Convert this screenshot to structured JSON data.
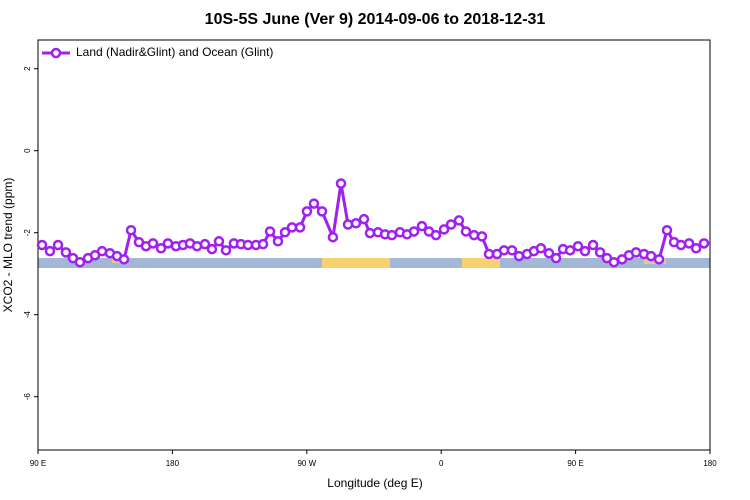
{
  "chart_data": {
    "type": "line",
    "title": "10S-5S June (Ver 9)   2014-09-06 to 2018-12-31",
    "x_label": "Longitude (deg E)",
    "y_label": "XCO2 - MLO trend (ppm)",
    "xlim": [
      90,
      540
    ],
    "xticks": [
      {
        "value": 90,
        "label": "90 E"
      },
      {
        "value": 180,
        "label": "180"
      },
      {
        "value": 270,
        "label": "90 W"
      },
      {
        "value": 360,
        "label": "0"
      },
      {
        "value": 450,
        "label": "90 E"
      },
      {
        "value": 540,
        "label": "180"
      }
    ],
    "ylim": [
      -7.3,
      2.7
    ],
    "yticks": [
      -6,
      -4,
      -2,
      0,
      2
    ],
    "legend": "top-left",
    "x": [
      92.7,
      98.0,
      103.4,
      108.7,
      113.4,
      118.1,
      123.5,
      128.2,
      132.9,
      138.2,
      142.9,
      147.6,
      152.3,
      157.6,
      162.3,
      167.0,
      172.4,
      177.0,
      182.4,
      187.1,
      191.8,
      196.5,
      201.8,
      206.5,
      211.2,
      215.9,
      221.2,
      225.9,
      230.6,
      236.0,
      240.7,
      245.4,
      250.7,
      255.4,
      260.1,
      265.5,
      270.1,
      274.8,
      280.2,
      287.5,
      292.9,
      297.6,
      302.9,
      308.3,
      312.3,
      317.7,
      322.4,
      327.0,
      332.4,
      337.1,
      341.8,
      347.1,
      351.8,
      356.5,
      361.9,
      366.6,
      371.9,
      376.6,
      382.0,
      387.3,
      392.0,
      397.4,
      402.1,
      407.4,
      412.1,
      417.5,
      422.1,
      426.8,
      432.2,
      436.9,
      441.6,
      446.3,
      451.6,
      456.3,
      461.7,
      466.4,
      471.0,
      475.7,
      481.1,
      485.8,
      490.5,
      495.8,
      500.5,
      505.9,
      511.2,
      515.9,
      520.6,
      526.0,
      530.7,
      536.0
    ],
    "series": [
      {
        "name": "Land (Nadir&Glint) and Ocean (Glint)",
        "color": "#a020f0",
        "values": [
          -2.3,
          -2.45,
          -2.3,
          -2.48,
          -2.62,
          -2.72,
          -2.62,
          -2.55,
          -2.45,
          -2.5,
          -2.57,
          -2.65,
          -1.94,
          -2.23,
          -2.33,
          -2.26,
          -2.38,
          -2.26,
          -2.33,
          -2.3,
          -2.26,
          -2.33,
          -2.28,
          -2.4,
          -2.21,
          -2.43,
          -2.26,
          -2.28,
          -2.3,
          -2.3,
          -2.28,
          -1.97,
          -2.21,
          -1.99,
          -1.87,
          -1.87,
          -1.48,
          -1.29,
          -1.48,
          -2.11,
          -0.8,
          -1.8,
          -1.77,
          -1.67,
          -2.01,
          -1.99,
          -2.04,
          -2.06,
          -1.99,
          -2.04,
          -1.97,
          -1.84,
          -1.97,
          -2.06,
          -1.92,
          -1.8,
          -1.7,
          -1.97,
          -2.06,
          -2.09,
          -2.52,
          -2.52,
          -2.43,
          -2.43,
          -2.57,
          -2.52,
          -2.45,
          -2.38,
          -2.5,
          -2.62,
          -2.4,
          -2.43,
          -2.33,
          -2.45,
          -2.3,
          -2.48,
          -2.62,
          -2.72,
          -2.65,
          -2.55,
          -2.48,
          -2.52,
          -2.57,
          -2.65,
          -1.94,
          -2.23,
          -2.3,
          -2.26,
          -2.38,
          -2.26
        ]
      }
    ]
  }
}
